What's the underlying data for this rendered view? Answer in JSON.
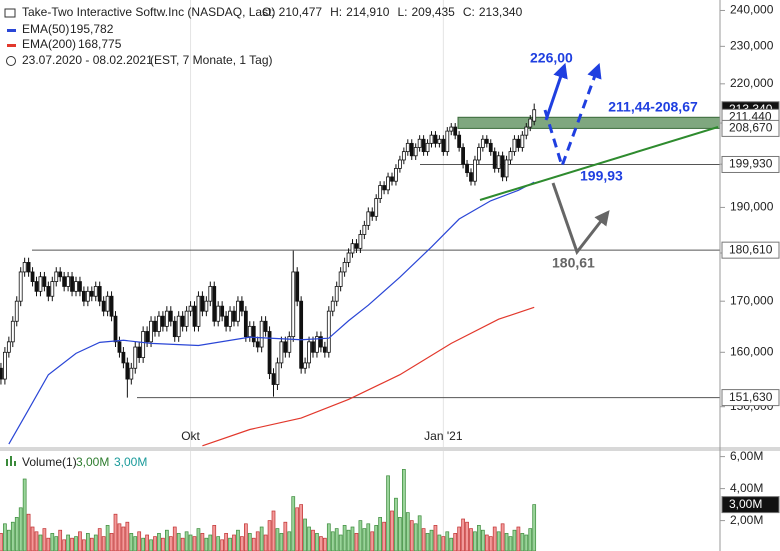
{
  "chart_data": [
    {
      "type": "candlestick",
      "title": "Take-Two Interactive Softw.Inc (NASDAQ, Last)",
      "header_stats": [
        {
          "name": "O:",
          "label": "210,477"
        },
        {
          "name": "H:",
          "label": "214,910"
        },
        {
          "name": "L:",
          "label": "209,435"
        },
        {
          "name": "C:",
          "label": "213,340"
        }
      ],
      "subtitle": "23.07.2020 - 08.02.2021",
      "subtitle_note": "(EST, 7 Monate, 1 Tag)",
      "log_scale": true,
      "ylim": [
        143,
        243
      ],
      "yticks": [
        {
          "value": 150,
          "label": "150,000"
        },
        {
          "value": 160,
          "label": "160,000"
        },
        {
          "value": 170,
          "label": "170,000"
        },
        {
          "value": 180,
          "label": "180,000"
        },
        {
          "value": 190,
          "label": "190,000"
        },
        {
          "value": 200,
          "label": "200,000"
        },
        {
          "value": 210,
          "label": "210,000"
        },
        {
          "value": 220,
          "label": "220,000"
        },
        {
          "value": 230,
          "label": "230,000"
        },
        {
          "value": 240,
          "label": "240,000"
        }
      ],
      "categories": [
        null,
        null,
        null,
        null,
        null,
        null,
        null,
        null,
        null,
        null,
        null,
        null,
        null,
        null,
        null,
        null,
        null,
        null,
        null,
        null,
        null,
        null,
        null,
        null,
        null,
        null,
        null,
        null,
        null,
        null,
        null,
        null,
        null,
        null,
        null,
        null,
        null,
        null,
        null,
        null,
        null,
        null,
        null,
        null,
        null,
        null,
        null,
        null,
        null,
        "Okt",
        null,
        null,
        null,
        null,
        null,
        null,
        null,
        null,
        null,
        null,
        null,
        null,
        null,
        null,
        null,
        null,
        null,
        null,
        null,
        null,
        null,
        null,
        null,
        null,
        null,
        null,
        null,
        null,
        null,
        null,
        null,
        null,
        null,
        null,
        null,
        null,
        null,
        null,
        null,
        null,
        null,
        null,
        null,
        null,
        null,
        null,
        null,
        null,
        null,
        null,
        null,
        null,
        null,
        null,
        null,
        null,
        null,
        null,
        null,
        null,
        null,
        null,
        null,
        "Jan '21",
        null,
        null,
        null,
        null,
        null,
        null,
        null,
        null,
        null,
        null,
        null,
        null,
        null,
        null,
        null,
        null,
        null,
        null,
        null,
        null,
        null,
        null,
        null
      ],
      "open": [
        158,
        157,
        155,
        160,
        162,
        166,
        170,
        176,
        178,
        176,
        174,
        172,
        175,
        173,
        171,
        174,
        176,
        175,
        173,
        175,
        172,
        174,
        172,
        170,
        172,
        171,
        173,
        170,
        168,
        171,
        167,
        162,
        160,
        158,
        155,
        157,
        161,
        159,
        164,
        162,
        166,
        164,
        167,
        165,
        168,
        166,
        163,
        167,
        165,
        168,
        169,
        165,
        171,
        168,
        170,
        173,
        166,
        169,
        167,
        165,
        168,
        166,
        170,
        168,
        163,
        165,
        162,
        161,
        166,
        164,
        156,
        154,
        158,
        162,
        160,
        163,
        176,
        170,
        157,
        158,
        162,
        160,
        163,
        161,
        160,
        168,
        170,
        173,
        176,
        178,
        180,
        182,
        181,
        184,
        186,
        189,
        188,
        192,
        195,
        194,
        197,
        196,
        199,
        201,
        203,
        205,
        202,
        204,
        206,
        203,
        205,
        207,
        205,
        206,
        203,
        208,
        209,
        207,
        204,
        200,
        198,
        196,
        201,
        204,
        206,
        205,
        203,
        199,
        202,
        197,
        201,
        203,
        206,
        204,
        207,
        209,
        210.477
      ],
      "high": [
        159,
        158,
        161,
        163,
        167,
        171,
        177,
        179,
        179,
        177,
        175,
        176,
        176,
        174,
        175,
        177,
        177,
        176,
        176,
        176,
        175,
        175,
        173,
        173,
        173,
        174,
        174,
        171,
        172,
        172,
        168,
        163,
        161,
        159,
        158,
        162,
        162,
        165,
        165,
        167,
        167,
        168,
        168,
        169,
        169,
        167,
        168,
        168,
        169,
        170,
        170,
        172,
        172,
        171,
        174,
        174,
        170,
        170,
        168,
        169,
        169,
        171,
        171,
        169,
        166,
        166,
        163,
        167,
        167,
        165,
        157,
        159,
        163,
        163,
        164,
        180.5,
        177,
        171,
        159,
        163,
        163,
        164,
        164,
        162,
        169,
        171,
        174,
        177,
        179,
        181,
        183,
        183,
        185,
        187,
        190,
        190,
        193,
        196,
        196,
        198,
        198,
        200,
        202,
        204,
        206,
        206,
        205,
        207,
        207,
        206,
        208,
        208,
        207,
        207,
        209,
        210,
        210,
        208,
        205,
        201,
        199,
        202,
        205,
        207,
        207,
        206,
        204,
        203,
        203,
        202,
        204,
        207,
        207,
        208,
        210,
        212,
        214.91
      ],
      "low": [
        156,
        154,
        154,
        159,
        161,
        165,
        169,
        175,
        175,
        173,
        171,
        171,
        172,
        170,
        170,
        173,
        174,
        172,
        172,
        171,
        171,
        171,
        169,
        169,
        170,
        170,
        169,
        167,
        167,
        166,
        161,
        159,
        157,
        151.63,
        154,
        156,
        158,
        158,
        161,
        161,
        163,
        163,
        164,
        164,
        165,
        162,
        162,
        164,
        164,
        167,
        164,
        164,
        167,
        167,
        169,
        165,
        165,
        166,
        164,
        164,
        165,
        165,
        167,
        162,
        162,
        161,
        160,
        160,
        163,
        155,
        151.8,
        153,
        157,
        159,
        159,
        162,
        169,
        156,
        156,
        157,
        159,
        159,
        160,
        159,
        159,
        167,
        169,
        172,
        175,
        177,
        179,
        180,
        180,
        183,
        185,
        187,
        187,
        191,
        193,
        193,
        195,
        195,
        198,
        200,
        202,
        201,
        201,
        203,
        202,
        202,
        204,
        204,
        204,
        202,
        202,
        207,
        206,
        203,
        199,
        197,
        195,
        195,
        200,
        203,
        204,
        202,
        198,
        198,
        196,
        196,
        200,
        202,
        203,
        203,
        206,
        208,
        209.435
      ],
      "close": [
        157,
        155,
        160,
        162,
        166,
        170,
        176,
        178,
        176,
        174,
        172,
        175,
        173,
        171,
        174,
        176,
        175,
        173,
        175,
        172,
        174,
        172,
        170,
        172,
        171,
        173,
        170,
        168,
        171,
        167,
        162,
        160,
        158,
        155,
        157,
        161,
        159,
        164,
        162,
        166,
        164,
        167,
        165,
        168,
        166,
        163,
        167,
        165,
        168,
        169,
        165,
        171,
        168,
        170,
        173,
        166,
        169,
        167,
        165,
        168,
        166,
        170,
        168,
        163,
        165,
        162,
        161,
        166,
        164,
        156,
        154,
        158,
        162,
        160,
        163,
        176,
        170,
        157,
        158,
        162,
        160,
        163,
        161,
        160,
        168,
        170,
        173,
        176,
        178,
        180,
        182,
        181,
        184,
        186,
        189,
        188,
        192,
        195,
        194,
        197,
        196,
        199,
        201,
        203,
        205,
        202,
        204,
        206,
        203,
        205,
        207,
        205,
        206,
        203,
        208,
        209,
        207,
        204,
        200,
        198,
        196,
        201,
        204,
        206,
        205,
        203,
        199,
        202,
        197,
        201,
        203,
        206,
        204,
        207,
        209,
        211,
        213.34
      ],
      "series": [
        {
          "name": "EMA(50)",
          "color": "#2a46d6",
          "x": [
            3,
            8,
            13,
            20,
            26,
            32,
            39,
            51,
            64,
            77,
            84,
            89,
            94,
            102,
            110,
            117,
            125,
            132,
            136
          ],
          "values": [
            143.5,
            149.5,
            155.8,
            159.8,
            161.9,
            162.3,
            161.7,
            161.3,
            162.9,
            162.4,
            162.7,
            166.1,
            169.2,
            174.9,
            181.3,
            187.4,
            191.5,
            193.9,
            195.782
          ],
          "value_labels": [
            null,
            null,
            null,
            null,
            null,
            null,
            null,
            null,
            null,
            null,
            null,
            null,
            null,
            null,
            null,
            null,
            null,
            null,
            "195,782"
          ]
        },
        {
          "name": "EMA(200)",
          "color": "#e2382c",
          "x": [
            52,
            64,
            77,
            89,
            102,
            115,
            127,
            136
          ],
          "values": [
            143.2,
            146.0,
            148.0,
            151.3,
            155.8,
            161.7,
            166.4,
            168.775
          ],
          "value_labels": [
            null,
            null,
            null,
            null,
            null,
            null,
            null,
            "168,775"
          ]
        }
      ],
      "last_price": {
        "value": 213.34,
        "label": "213,340"
      },
      "zone": {
        "high": {
          "value": 211.44,
          "label": "211,440"
        },
        "low": {
          "value": 208.67,
          "label": "208,670"
        }
      },
      "levels": [
        {
          "value": 199.93,
          "label": "199,930"
        },
        {
          "value": 180.61,
          "label": "180,610"
        },
        {
          "value": 151.63,
          "label": "151,630"
        }
      ],
      "annotations": [
        "226,00",
        "211,44-208,67",
        "199,93",
        "180,61"
      ]
    },
    {
      "type": "bar",
      "name": "Volume(1)",
      "legend_values": [
        "3,00M",
        "3,00M"
      ],
      "ylim": [
        0.1,
        6.1
      ],
      "yticks": [
        {
          "value": 2,
          "label": "2,00M"
        },
        {
          "value": 4,
          "label": "4,00M"
        },
        {
          "value": 6,
          "label": "6,00M"
        }
      ],
      "last_value": {
        "value": 3.0,
        "label": "3,00M"
      },
      "values": [
        1.5,
        1.2,
        1.8,
        1.4,
        1.9,
        2.2,
        2.8,
        4.6,
        2.4,
        1.6,
        1.3,
        1.1,
        1.5,
        0.9,
        1.2,
        1.0,
        1.4,
        0.8,
        1.1,
        0.9,
        1.0,
        1.3,
        0.8,
        1.2,
        0.9,
        1.1,
        1.5,
        1.0,
        1.7,
        1.2,
        2.4,
        1.8,
        1.6,
        1.9,
        1.2,
        1.0,
        1.3,
        0.9,
        1.1,
        0.8,
        1.0,
        1.2,
        0.9,
        1.4,
        1.0,
        1.6,
        1.2,
        0.9,
        1.3,
        1.1,
        1.0,
        1.5,
        1.2,
        0.9,
        1.1,
        1.7,
        1.0,
        0.8,
        1.2,
        0.9,
        1.1,
        1.4,
        1.0,
        1.8,
        1.2,
        0.9,
        1.3,
        1.6,
        1.1,
        2.0,
        2.6,
        1.5,
        1.2,
        1.9,
        1.3,
        3.5,
        2.8,
        3.0,
        2.1,
        1.6,
        1.4,
        1.2,
        1.0,
        0.9,
        1.8,
        1.3,
        1.5,
        1.1,
        1.7,
        1.4,
        1.6,
        1.2,
        2.0,
        1.5,
        1.8,
        1.3,
        1.7,
        2.2,
        1.9,
        4.8,
        2.6,
        3.4,
        2.2,
        5.2,
        2.5,
        2.0,
        1.8,
        2.3,
        1.5,
        1.2,
        1.4,
        1.7,
        1.1,
        1.0,
        1.3,
        0.9,
        1.2,
        1.6,
        2.1,
        1.9,
        1.5,
        1.3,
        1.7,
        1.4,
        1.1,
        1.0,
        1.6,
        1.3,
        1.8,
        1.2,
        1.0,
        1.4,
        1.6,
        1.2,
        1.1,
        1.5,
        3.0
      ]
    }
  ]
}
